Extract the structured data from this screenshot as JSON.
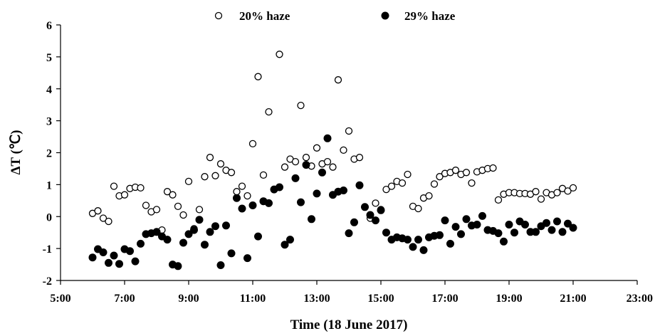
{
  "chart_data": {
    "type": "scatter",
    "title": "",
    "xlabel": "Time (18 June 2017)",
    "ylabel": "ΔT (℃)",
    "x_unit": "hour of day",
    "xlim": [
      5,
      23
    ],
    "ylim": [
      -2,
      6
    ],
    "x_ticks": [
      5,
      7,
      9,
      11,
      13,
      15,
      17,
      19,
      21,
      23
    ],
    "x_tick_labels": [
      "5:00",
      "7:00",
      "9:00",
      "11:00",
      "13:00",
      "15:00",
      "17:00",
      "19:00",
      "21:00",
      "23:00"
    ],
    "y_ticks": [
      -2,
      -1,
      0,
      1,
      2,
      3,
      4,
      5,
      6
    ],
    "y_tick_labels": [
      "-2",
      "-1",
      "0",
      "1",
      "2",
      "3",
      "4",
      "5",
      "6"
    ],
    "grid": false,
    "legend": {
      "position": "top",
      "orientation": "horizontal"
    },
    "series": [
      {
        "name": "20% haze",
        "marker": "open-circle",
        "color": "#000000",
        "x": [
          6.0,
          6.167,
          6.333,
          6.5,
          6.667,
          6.833,
          7.0,
          7.167,
          7.333,
          7.5,
          7.667,
          7.833,
          8.0,
          8.167,
          8.333,
          8.5,
          8.667,
          8.833,
          9.0,
          9.167,
          9.333,
          9.5,
          9.667,
          9.833,
          10.0,
          10.167,
          10.333,
          10.5,
          10.667,
          10.833,
          11.0,
          11.167,
          11.333,
          11.5,
          11.667,
          11.833,
          12.0,
          12.167,
          12.333,
          12.5,
          12.667,
          12.833,
          13.0,
          13.167,
          13.333,
          13.5,
          13.667,
          13.833,
          14.0,
          14.167,
          14.333,
          14.5,
          14.667,
          14.833,
          15.0,
          15.167,
          15.333,
          15.5,
          15.667,
          15.833,
          16.0,
          16.167,
          16.333,
          16.5,
          16.667,
          16.833,
          17.0,
          17.167,
          17.333,
          17.5,
          17.667,
          17.833,
          18.0,
          18.167,
          18.333,
          18.5,
          18.667,
          18.833,
          19.0,
          19.167,
          19.333,
          19.5,
          19.667,
          19.833,
          20.0,
          20.167,
          20.333,
          20.5,
          20.667,
          20.833,
          21.0
        ],
        "y": [
          0.1,
          0.18,
          -0.05,
          -0.15,
          0.95,
          0.65,
          0.68,
          0.88,
          0.92,
          0.9,
          0.35,
          0.15,
          0.22,
          -0.42,
          0.78,
          0.68,
          0.32,
          0.05,
          1.1,
          -0.38,
          0.22,
          1.25,
          1.85,
          1.28,
          1.65,
          1.45,
          1.38,
          0.78,
          0.95,
          0.65,
          2.28,
          4.38,
          1.3,
          3.28,
          0.85,
          5.08,
          1.55,
          1.8,
          1.72,
          3.48,
          1.85,
          1.58,
          2.15,
          1.65,
          1.72,
          1.55,
          4.28,
          2.08,
          2.68,
          1.8,
          1.85,
          0.3,
          -0.05,
          0.42,
          0.22,
          0.85,
          0.95,
          1.1,
          1.05,
          1.32,
          0.32,
          0.25,
          0.58,
          0.65,
          1.02,
          1.25,
          1.35,
          1.38,
          1.45,
          1.32,
          1.38,
          1.05,
          1.4,
          1.45,
          1.5,
          1.52,
          0.52,
          0.7,
          0.75,
          0.75,
          0.72,
          0.72,
          0.7,
          0.78,
          0.55,
          0.75,
          0.68,
          0.75,
          0.88,
          0.8,
          0.9
        ]
      },
      {
        "name": "29% haze",
        "marker": "filled-circle",
        "color": "#000000",
        "x": [
          6.0,
          6.167,
          6.333,
          6.5,
          6.667,
          6.833,
          7.0,
          7.167,
          7.333,
          7.5,
          7.667,
          7.833,
          8.0,
          8.167,
          8.333,
          8.5,
          8.667,
          8.833,
          9.0,
          9.167,
          9.333,
          9.5,
          9.667,
          9.833,
          10.0,
          10.167,
          10.333,
          10.5,
          10.667,
          10.833,
          11.0,
          11.167,
          11.333,
          11.5,
          11.667,
          11.833,
          12.0,
          12.167,
          12.333,
          12.5,
          12.667,
          12.833,
          13.0,
          13.167,
          13.333,
          13.5,
          13.667,
          13.833,
          14.0,
          14.167,
          14.333,
          14.5,
          14.667,
          14.833,
          15.0,
          15.167,
          15.333,
          15.5,
          15.667,
          15.833,
          16.0,
          16.167,
          16.333,
          16.5,
          16.667,
          16.833,
          17.0,
          17.167,
          17.333,
          17.5,
          17.667,
          17.833,
          18.0,
          18.167,
          18.333,
          18.5,
          18.667,
          18.833,
          19.0,
          19.167,
          19.333,
          19.5,
          19.667,
          19.833,
          20.0,
          20.167,
          20.333,
          20.5,
          20.667,
          20.833,
          21.0
        ],
        "y": [
          -1.28,
          -1.02,
          -1.12,
          -1.45,
          -1.22,
          -1.48,
          -1.02,
          -1.08,
          -1.4,
          -0.85,
          -0.55,
          -0.52,
          -0.48,
          -0.62,
          -0.72,
          -1.5,
          -1.55,
          -0.82,
          -0.55,
          -0.42,
          -0.1,
          -0.88,
          -0.48,
          -0.3,
          -1.52,
          -0.28,
          -1.15,
          0.58,
          0.25,
          -1.3,
          0.35,
          -0.62,
          0.48,
          0.42,
          0.85,
          0.92,
          -0.88,
          -0.72,
          1.2,
          0.45,
          1.62,
          -0.08,
          0.72,
          1.38,
          2.45,
          0.68,
          0.78,
          0.82,
          -0.52,
          -0.18,
          0.98,
          0.3,
          0.05,
          -0.12,
          0.2,
          -0.5,
          -0.72,
          -0.65,
          -0.68,
          -0.72,
          -0.95,
          -0.72,
          -1.05,
          -0.65,
          -0.6,
          -0.58,
          -0.12,
          -0.85,
          -0.32,
          -0.55,
          -0.08,
          -0.28,
          -0.25,
          0.02,
          -0.42,
          -0.45,
          -0.52,
          -0.78,
          -0.25,
          -0.5,
          -0.15,
          -0.25,
          -0.48,
          -0.48,
          -0.3,
          -0.2,
          -0.42,
          -0.15,
          -0.48,
          -0.22,
          -0.35
        ]
      }
    ]
  }
}
